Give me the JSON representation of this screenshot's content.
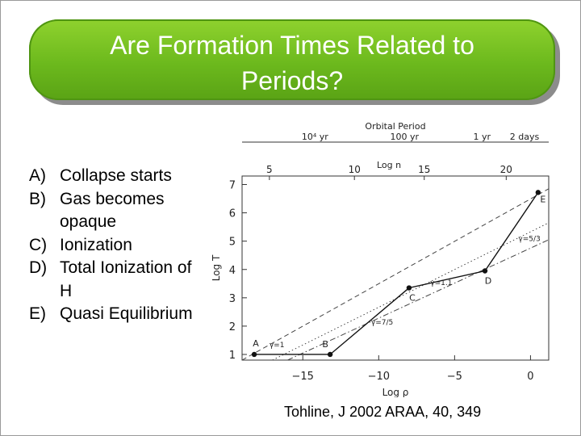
{
  "slide": {
    "title": "Are Formation Times Related to\nPeriods?",
    "items": [
      {
        "letter": "A)",
        "text": "Collapse starts"
      },
      {
        "letter": "B)",
        "text": "Gas becomes opaque"
      },
      {
        "letter": "C)",
        "text": "Ionization"
      },
      {
        "letter": "D)",
        "text": "Total Ionization of H"
      },
      {
        "letter": "E)",
        "text": "Quasi Equilibrium"
      }
    ],
    "caption": "Tohline, J 2002 ARAA, 40, 349"
  },
  "colors": {
    "title_green": "#6cb91d",
    "title_text": "#ffffff"
  },
  "chart_data": {
    "type": "line",
    "title": "",
    "xlabel": "Log ρ",
    "ylabel": "Log T",
    "xlim": [
      -19,
      1.2
    ],
    "ylim": [
      0.8,
      7.3
    ],
    "x_ticks": [
      -15,
      -10,
      -5,
      0
    ],
    "x_tick_labels": [
      "−15",
      "−10",
      "−5",
      "0"
    ],
    "y_ticks": [
      1,
      2,
      3,
      4,
      5,
      6,
      7
    ],
    "y_tick_labels": [
      "1",
      "2",
      "3",
      "4",
      "5",
      "6",
      "7"
    ],
    "top_axis_1": {
      "label": "Log n",
      "ticks": [
        {
          "x": -17.2,
          "label": "5"
        },
        {
          "x": -11.6,
          "label": "10"
        },
        {
          "x": -7.0,
          "label": "15"
        },
        {
          "x": -1.6,
          "label": "20"
        }
      ]
    },
    "top_axis_2": {
      "label": "Orbital  Period",
      "ticks": [
        {
          "x": -14.2,
          "label": "10⁴ yr"
        },
        {
          "x": -8.3,
          "label": "100 yr"
        },
        {
          "x": -3.2,
          "label": "1 yr"
        },
        {
          "x": 2.7,
          "label": "2 days"
        }
      ]
    },
    "series": [
      {
        "points": [
          {
            "x": -18.2,
            "y": 1.0,
            "label": "A"
          },
          {
            "x": -13.2,
            "y": 1.0,
            "label": "B"
          },
          {
            "x": -8.0,
            "y": 3.35,
            "label": "C"
          },
          {
            "x": -3.0,
            "y": 3.95,
            "label": "D"
          },
          {
            "x": 0.5,
            "y": 6.72,
            "label": "E"
          }
        ]
      }
    ],
    "reference_lines": [
      {
        "style": "dashed",
        "points": [
          {
            "x": -19,
            "y": 0.8
          },
          {
            "x": 1.2,
            "y": 6.85
          }
        ]
      },
      {
        "style": "dotted",
        "points": [
          {
            "x": -17,
            "y": 0.8
          },
          {
            "x": 1.2,
            "y": 5.65
          }
        ]
      },
      {
        "style": "dashdot",
        "points": [
          {
            "x": -16,
            "y": 0.8
          },
          {
            "x": 1.2,
            "y": 5.05
          }
        ]
      }
    ],
    "annotations": [
      {
        "x": -17.2,
        "y": 1.25,
        "text": "γ=1"
      },
      {
        "x": -10.5,
        "y": 2.05,
        "text": "γ=7/5"
      },
      {
        "x": -6.6,
        "y": 3.45,
        "text": "γ=1.1"
      },
      {
        "x": -0.8,
        "y": 5.0,
        "text": "γ=5/3"
      }
    ],
    "grid": false,
    "legend": "none"
  }
}
